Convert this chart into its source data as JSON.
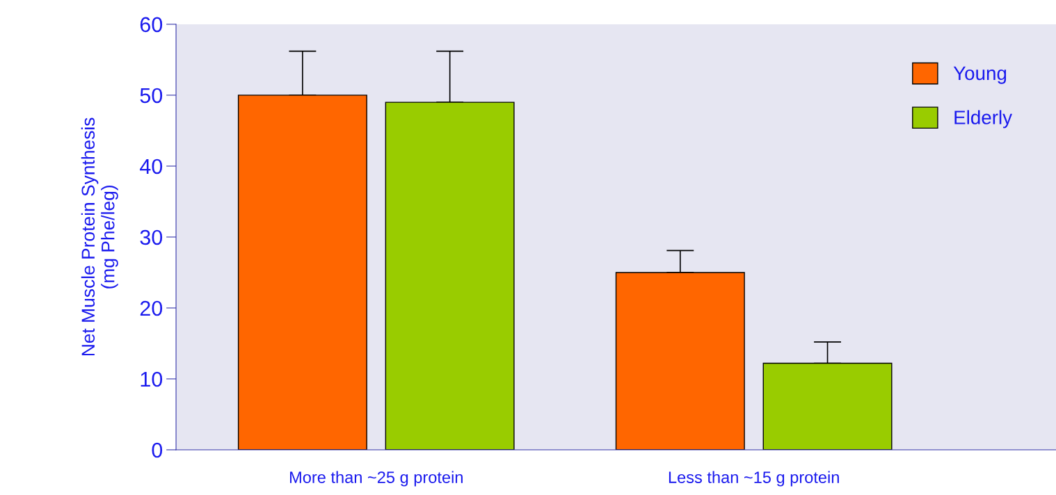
{
  "chart_data": {
    "type": "bar",
    "ylabel": "Net Muscle Protein Synthesis\n(mg Phe/leg)",
    "categories": [
      "More than ~25 g protein",
      "Less than ~15 g protein"
    ],
    "series": [
      {
        "name": "Young",
        "color": "#ff6600",
        "values": [
          50,
          25
        ],
        "errors": [
          [
            50,
            56.2
          ],
          [
            25,
            28.1
          ]
        ]
      },
      {
        "name": "Elderly",
        "color": "#99cc00",
        "values": [
          49,
          12.2
        ],
        "errors": [
          [
            49,
            56.2
          ],
          [
            12.2,
            15.2
          ]
        ]
      }
    ],
    "ylim": [
      0,
      60
    ],
    "yticks": [
      0,
      10,
      20,
      30,
      40,
      50,
      60
    ],
    "grid": false,
    "legend": "top right"
  }
}
